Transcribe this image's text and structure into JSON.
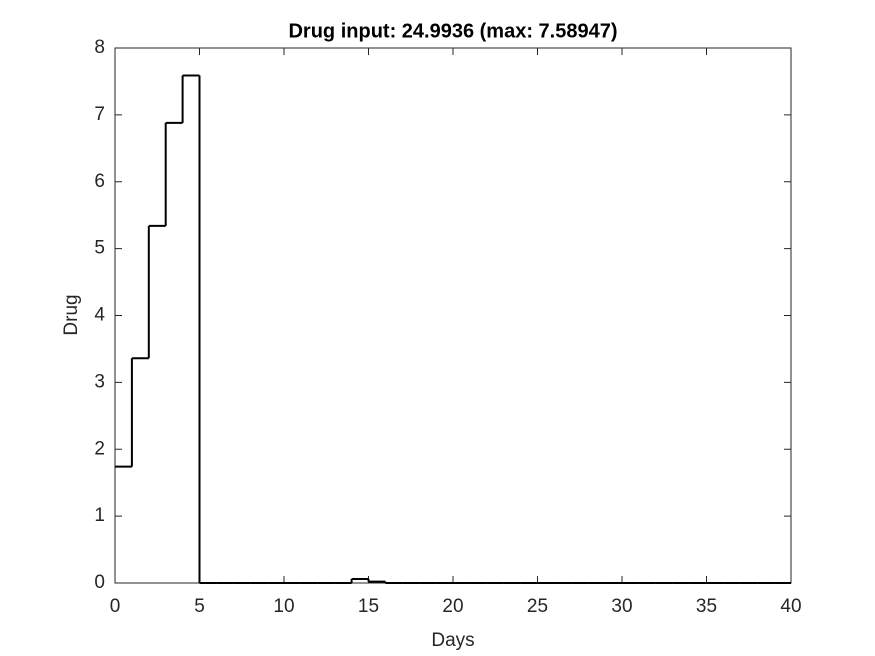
{
  "chart_data": {
    "type": "stairs",
    "title": "Drug input: 24.9936 (max: 7.58947)",
    "x_label": "Days",
    "y_label": "Drug",
    "color": "#000000",
    "x": [
      0,
      1,
      2,
      3,
      4,
      5,
      6,
      7,
      8,
      9,
      10,
      11,
      12,
      13,
      14,
      15,
      16,
      17,
      18,
      19,
      20,
      21,
      22,
      23,
      24,
      25,
      26,
      27,
      28,
      29,
      30,
      31,
      32,
      33,
      34,
      35,
      36,
      37,
      38,
      39,
      40
    ],
    "values": [
      1.74,
      3.36,
      5.34,
      6.88,
      7.58947,
      0,
      0,
      0,
      0,
      0,
      0,
      0,
      0,
      0,
      0.06,
      0.02,
      0,
      0,
      0,
      0,
      0,
      0,
      0,
      0,
      0,
      0,
      0,
      0,
      0,
      0,
      0,
      0,
      0,
      0,
      0,
      0,
      0,
      0,
      0,
      0,
      0
    ],
    "xlim": [
      0,
      40
    ],
    "xticks": [
      0,
      5,
      10,
      15,
      20,
      25,
      30,
      35,
      40
    ],
    "ylim": [
      0,
      8
    ],
    "yticks": [
      0,
      1,
      2,
      3,
      4,
      5,
      6,
      7,
      8
    ]
  }
}
